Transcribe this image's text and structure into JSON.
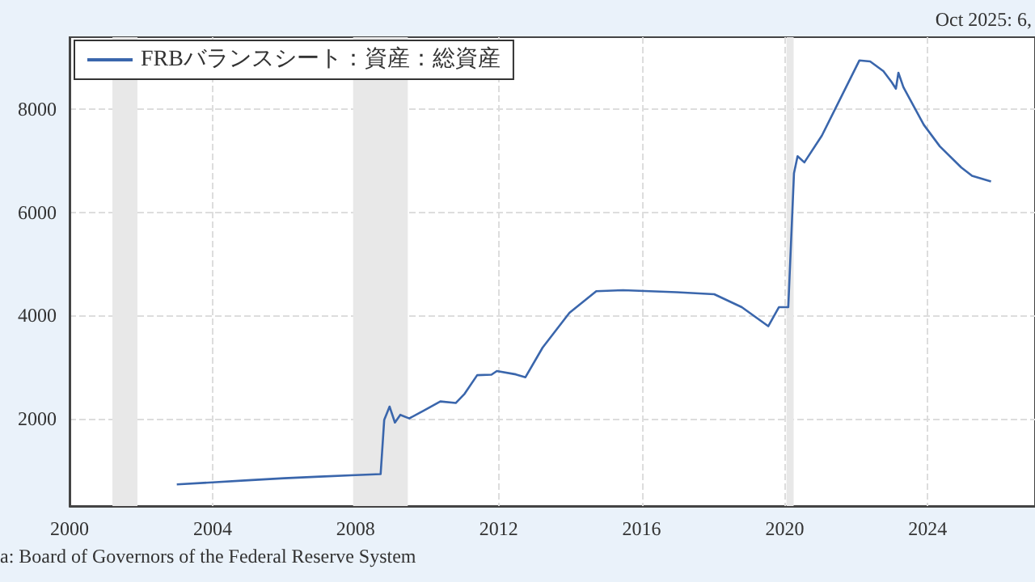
{
  "chart_data": {
    "type": "line",
    "annotations": [
      "Oct 2025: 6,",
      "a: Board of Governors of the Federal Reserve System"
    ],
    "series": [
      {
        "name": "FRBバランスシート：資産：総資産",
        "color": "#3a66ac",
        "x": [
          2003.0,
          2004,
          2005,
          2006,
          2007,
          2008,
          2008.7,
          2008.8,
          2008.95,
          2009.1,
          2009.25,
          2009.5,
          2009.9,
          2010.37,
          2010.8,
          2011.05,
          2011.4,
          2011.8,
          2011.95,
          2012.48,
          2012.75,
          2013.23,
          2013.98,
          2014.73,
          2015.48,
          2016.98,
          2018.03,
          2018.8,
          2019.54,
          2019.84,
          2020.1,
          2020.26,
          2020.36,
          2020.55,
          2021.04,
          2021.49,
          2022.09,
          2022.39,
          2022.76,
          2022.99,
          2023.11,
          2023.18,
          2023.32,
          2023.89,
          2024.34,
          2024.94,
          2025.24,
          2025.77
        ],
        "values": [
          720,
          760,
          800,
          840,
          870,
          900,
          920,
          1970,
          2230,
          1920,
          2070,
          2000,
          2150,
          2330,
          2300,
          2480,
          2840,
          2850,
          2920,
          2855,
          2800,
          3375,
          4050,
          4470,
          4490,
          4450,
          4410,
          4160,
          3790,
          4160,
          4160,
          6760,
          7090,
          6970,
          7490,
          8115,
          8950,
          8930,
          8740,
          8530,
          8400,
          8710,
          8430,
          7700,
          7280,
          6870,
          6710,
          6600
        ]
      }
    ],
    "xlim": [
      2000,
      2027
    ],
    "xticks": [
      2000,
      2004,
      2008,
      2012,
      2016,
      2020,
      2024
    ],
    "ylim": [
      300,
      9400
    ],
    "yticks": [
      2000,
      4000,
      6000,
      8000
    ],
    "bands": [
      {
        "axis": "x",
        "from": 2001.2,
        "to": 2001.9,
        "color": "#e8e8e8"
      },
      {
        "axis": "x",
        "from": 2007.93,
        "to": 2009.46,
        "color": "#e8e8e8"
      },
      {
        "axis": "x",
        "from": 2020.05,
        "to": 2020.25,
        "color": "#e8e8e8"
      }
    ],
    "grid": true,
    "legend": "top left",
    "marker": "none",
    "line_style": "solid"
  }
}
